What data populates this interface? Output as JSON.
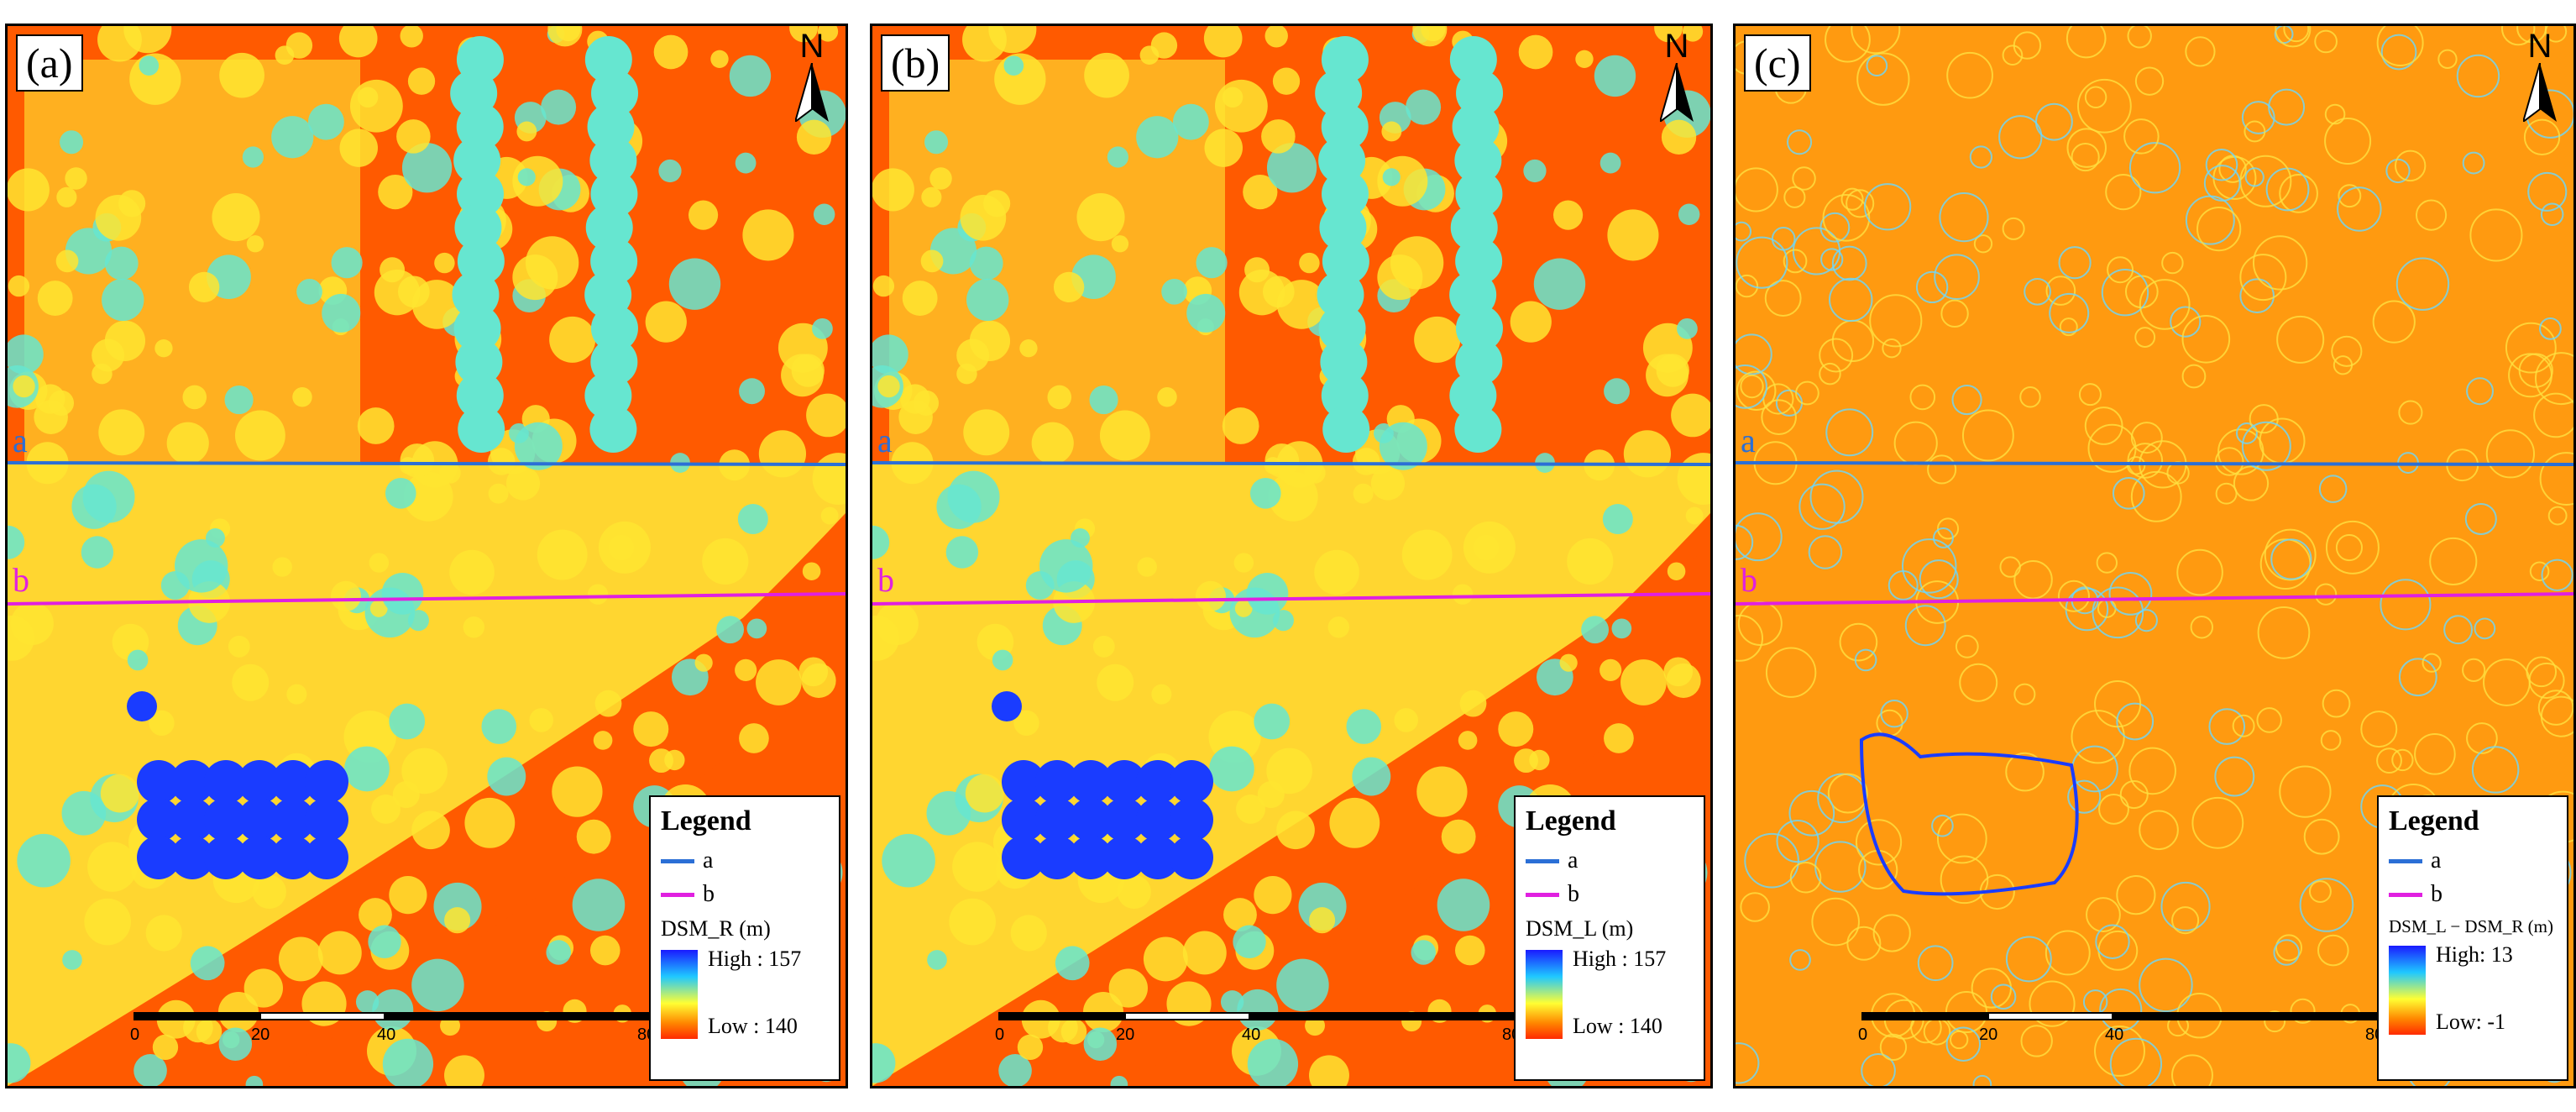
{
  "panels": [
    {
      "label": "(a)",
      "north": "N",
      "line_a": "a",
      "line_b": "b",
      "legend": {
        "title": "Legend",
        "items": [
          "a",
          "b"
        ],
        "variable": "DSM_R (m)",
        "high": "High : 157",
        "low": "Low : 140"
      },
      "scale_ticks": [
        "0",
        "20",
        "40",
        "80"
      ],
      "style": "dsm"
    },
    {
      "label": "(b)",
      "north": "N",
      "line_a": "a",
      "line_b": "b",
      "legend": {
        "title": "Legend",
        "items": [
          "a",
          "b"
        ],
        "variable": "DSM_L (m)",
        "high": "High : 157",
        "low": "Low : 140"
      },
      "scale_ticks": [
        "0",
        "20",
        "40",
        "80"
      ],
      "style": "dsm"
    },
    {
      "label": "(c)",
      "north": "N",
      "line_a": "a",
      "line_b": "b",
      "legend": {
        "title": "Legend",
        "items": [
          "a",
          "b"
        ],
        "variable": "DSM_L − DSM_R (m)",
        "high": "High: 13",
        "low": "Low: -1"
      },
      "scale_ticks": [
        "0",
        "20",
        "40",
        "80"
      ],
      "style": "diff"
    }
  ],
  "colors": {
    "line_a": "#2b6fd6",
    "line_b": "#e020e0",
    "ground": "#ff5a00",
    "canopy": "#ffe530",
    "canopy_high": "#66e6d0",
    "tall_trees": "#1a3cff",
    "diff_bg": "#ff9a10"
  }
}
